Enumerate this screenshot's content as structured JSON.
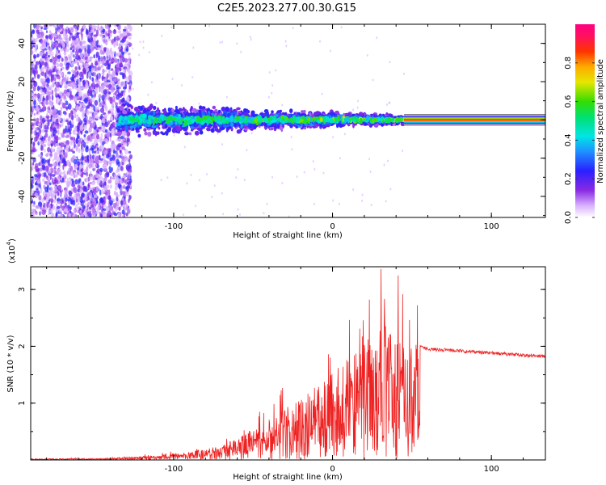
{
  "title": "C2E5.2023.277.00.30.G15",
  "colors": {
    "snr_line": "#ee2222",
    "axis": "#000000",
    "background": "#ffffff"
  },
  "chart_data": [
    {
      "type": "heatmap",
      "xlabel": "Height of straight line (km)",
      "ylabel": "Frequency (Hz)",
      "xlim": [
        -190,
        134
      ],
      "ylim": [
        -51,
        50
      ],
      "xticks": [
        -100,
        0,
        100
      ],
      "yticks": [
        -40,
        -20,
        0,
        20,
        40
      ],
      "colorbar": {
        "label": "Normalized spectral amplitude",
        "range": [
          0,
          1
        ],
        "ticks": [
          "0.0",
          "0.2",
          "0.4",
          "0.6",
          "0.8"
        ],
        "colormap": "rainbow (white-purple-blue-cyan-green-yellow-red-magenta)"
      },
      "features": {
        "noise_region_x": [
          -190,
          -135
        ],
        "scattered_signal_x": [
          -135,
          45
        ],
        "scattered_signal_freq_halfwidth": [
          8,
          2
        ],
        "steady_carrier_x": [
          45,
          134
        ],
        "steady_carrier_freq": 0
      }
    },
    {
      "type": "line",
      "xlabel": "Height of straight line (km)",
      "ylabel": "SNR (10 * v/v)",
      "yscale_label": "(x10",
      "yscale_exp": "4",
      "yscale_close": ")",
      "xlim": [
        -190,
        134
      ],
      "ylim": [
        0,
        3.4
      ],
      "xticks": [
        -100,
        0,
        100
      ],
      "yticks": [
        1,
        2,
        3
      ],
      "series": [
        {
          "envelope_x": [
            -190,
            -140,
            -110,
            -90,
            -70,
            -50,
            -30,
            -10,
            10,
            30,
            45,
            55,
            60,
            80,
            100,
            134
          ],
          "envelope_y": [
            0.02,
            0.03,
            0.08,
            0.15,
            0.25,
            0.55,
            0.9,
            1.3,
            1.8,
            2.4,
            2.2,
            2.0,
            1.95,
            1.92,
            1.88,
            1.82
          ],
          "steady_level_x_start": 55
        }
      ]
    }
  ]
}
